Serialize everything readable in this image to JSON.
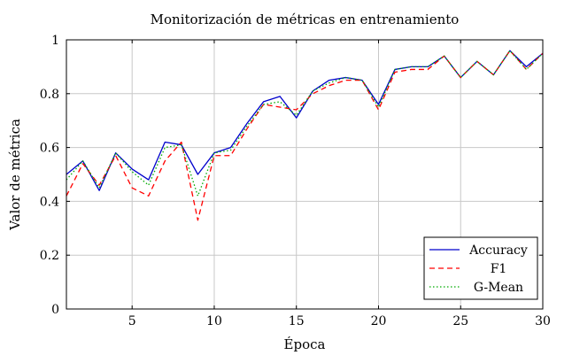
{
  "chart_data": {
    "type": "line",
    "title": "Monitorización de métricas en entrenamiento",
    "xlabel": "Época",
    "ylabel": "Valor de métrica",
    "xlim": [
      1,
      30
    ],
    "ylim": [
      0,
      1
    ],
    "xticks": [
      5,
      10,
      15,
      20,
      25,
      30
    ],
    "yticks": [
      0,
      0.2,
      0.4,
      0.6,
      0.8,
      1
    ],
    "ytick_labels": [
      "0",
      "0.2",
      "0.4",
      "0.6",
      "0.8",
      "1"
    ],
    "grid": true,
    "legend_position": "bottom-right",
    "x": [
      1,
      2,
      3,
      4,
      5,
      6,
      7,
      8,
      9,
      10,
      11,
      12,
      13,
      14,
      15,
      16,
      17,
      18,
      19,
      20,
      21,
      22,
      23,
      24,
      25,
      26,
      27,
      28,
      29,
      30
    ],
    "series": [
      {
        "name": "Accuracy",
        "color": "#0000cc",
        "style": "solid",
        "values": [
          0.5,
          0.55,
          0.44,
          0.58,
          0.52,
          0.48,
          0.62,
          0.61,
          0.5,
          0.58,
          0.6,
          0.69,
          0.77,
          0.79,
          0.71,
          0.81,
          0.85,
          0.86,
          0.85,
          0.76,
          0.89,
          0.9,
          0.9,
          0.94,
          0.86,
          0.92,
          0.87,
          0.96,
          0.9,
          0.95
        ]
      },
      {
        "name": "F1",
        "color": "#ff0000",
        "style": "dashed",
        "values": [
          0.42,
          0.54,
          0.46,
          0.57,
          0.45,
          0.42,
          0.55,
          0.62,
          0.33,
          0.57,
          0.57,
          0.67,
          0.76,
          0.75,
          0.74,
          0.8,
          0.83,
          0.85,
          0.85,
          0.74,
          0.88,
          0.89,
          0.89,
          0.94,
          0.86,
          0.92,
          0.87,
          0.96,
          0.89,
          0.95
        ]
      },
      {
        "name": "G-Mean",
        "color": "#00aa00",
        "style": "dotted",
        "values": [
          0.48,
          0.55,
          0.45,
          0.58,
          0.51,
          0.46,
          0.6,
          0.61,
          0.42,
          0.58,
          0.59,
          0.68,
          0.76,
          0.77,
          0.72,
          0.81,
          0.84,
          0.86,
          0.85,
          0.75,
          0.89,
          0.9,
          0.9,
          0.94,
          0.86,
          0.92,
          0.87,
          0.96,
          0.89,
          0.95
        ]
      }
    ]
  }
}
